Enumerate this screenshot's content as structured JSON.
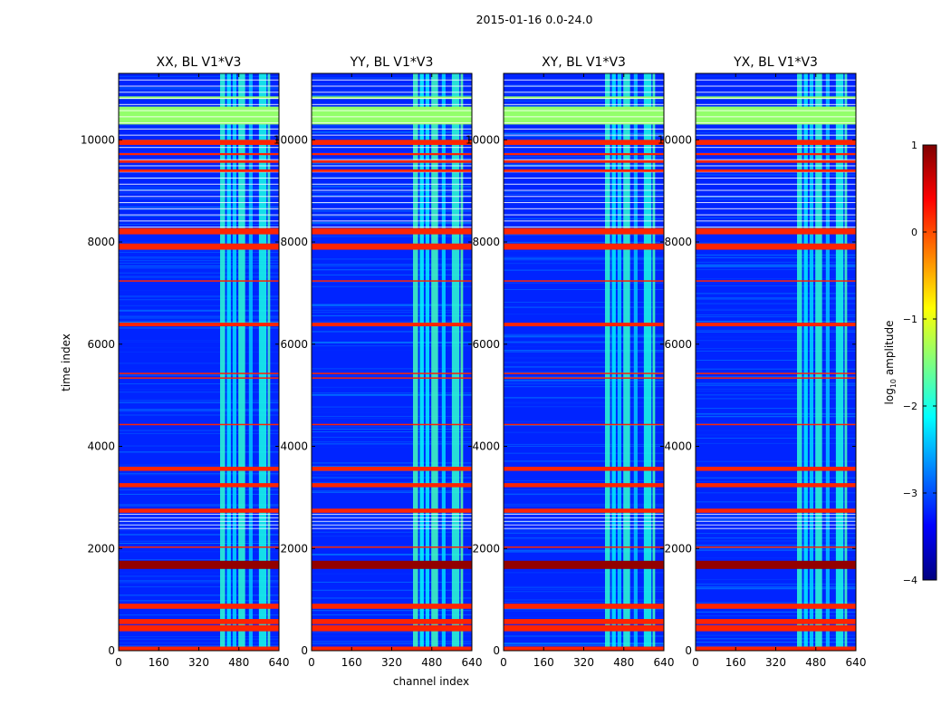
{
  "figure_title": "2015-01-16 0.0-24.0",
  "colors": {
    "background": "#ffffff",
    "axes": "#000000",
    "colormap": [
      "#00007f",
      "#0000ff",
      "#007fff",
      "#00ffff",
      "#7fff7f",
      "#ffff00",
      "#ff7f00",
      "#ff0000",
      "#7f0000"
    ]
  },
  "chart_data": {
    "type": "heatmap",
    "title": "2015-01-16 0.0-24.0",
    "xlabel": "channel index",
    "ylabel": "time index",
    "xlim": [
      0,
      640
    ],
    "ylim": [
      0,
      11300
    ],
    "x_ticks": [
      0,
      160,
      320,
      480,
      640
    ],
    "y_ticks": [
      0,
      2000,
      4000,
      6000,
      8000,
      10000
    ],
    "panels": [
      {
        "title": "XX, BL V1*V3",
        "polarization": "XX",
        "baseline": "V1*V3"
      },
      {
        "title": "YY, BL V1*V3",
        "polarization": "YY",
        "baseline": "V1*V3"
      },
      {
        "title": "XY, BL V1*V3",
        "polarization": "XY",
        "baseline": "V1*V3"
      },
      {
        "title": "YX, BL V1*V3",
        "polarization": "YX",
        "baseline": "V1*V3"
      }
    ],
    "colorbar": {
      "label": "log",
      "label_sub": "10",
      "label_rest": " amplitude",
      "range": [
        -4,
        1
      ],
      "ticks": [
        1,
        0,
        -1,
        -2,
        -3,
        -4
      ]
    },
    "background_level_log10": -3.2,
    "rfi_channel_bands": [
      {
        "from": 405,
        "to": 425,
        "level": -1.9
      },
      {
        "from": 432,
        "to": 448,
        "level": -2.2
      },
      {
        "from": 455,
        "to": 470,
        "level": -2.3
      },
      {
        "from": 478,
        "to": 505,
        "level": -1.9
      },
      {
        "from": 520,
        "to": 535,
        "level": -2.4
      },
      {
        "from": 560,
        "to": 590,
        "level": -2.0
      },
      {
        "from": 595,
        "to": 605,
        "level": -1.8
      }
    ],
    "flagged_time_bands": [
      {
        "from": 0,
        "to": 80,
        "level": 0.2
      },
      {
        "from": 380,
        "to": 500,
        "level": 0.2
      },
      {
        "from": 520,
        "to": 620,
        "level": 0.2
      },
      {
        "from": 820,
        "to": 920,
        "level": 0.2
      },
      {
        "from": 1600,
        "to": 1760,
        "level": 0.9
      },
      {
        "from": 2020,
        "to": 2040,
        "level": 0.2
      },
      {
        "from": 2700,
        "to": 2780,
        "level": 0.2
      },
      {
        "from": 3200,
        "to": 3280,
        "level": 0.2
      },
      {
        "from": 3520,
        "to": 3600,
        "level": 0.2
      },
      {
        "from": 4420,
        "to": 4440,
        "level": 0.2
      },
      {
        "from": 5330,
        "to": 5350,
        "level": 0.2
      },
      {
        "from": 5420,
        "to": 5440,
        "level": 0.2
      },
      {
        "from": 6350,
        "to": 6420,
        "level": 0.2
      },
      {
        "from": 7230,
        "to": 7250,
        "level": 0.2
      },
      {
        "from": 7850,
        "to": 7970,
        "level": 0.2
      },
      {
        "from": 8150,
        "to": 8270,
        "level": 0.2
      },
      {
        "from": 9370,
        "to": 9420,
        "level": 0.2
      },
      {
        "from": 9550,
        "to": 9600,
        "level": 0.2
      },
      {
        "from": 9700,
        "to": 9740,
        "level": 0.2
      },
      {
        "from": 9900,
        "to": 10000,
        "level": 0.2
      }
    ],
    "saturated_time_bands": [
      {
        "from": 10300,
        "to": 10650,
        "level": -1.4
      },
      {
        "from": 10800,
        "to": 10850,
        "level": -1.4
      }
    ]
  }
}
